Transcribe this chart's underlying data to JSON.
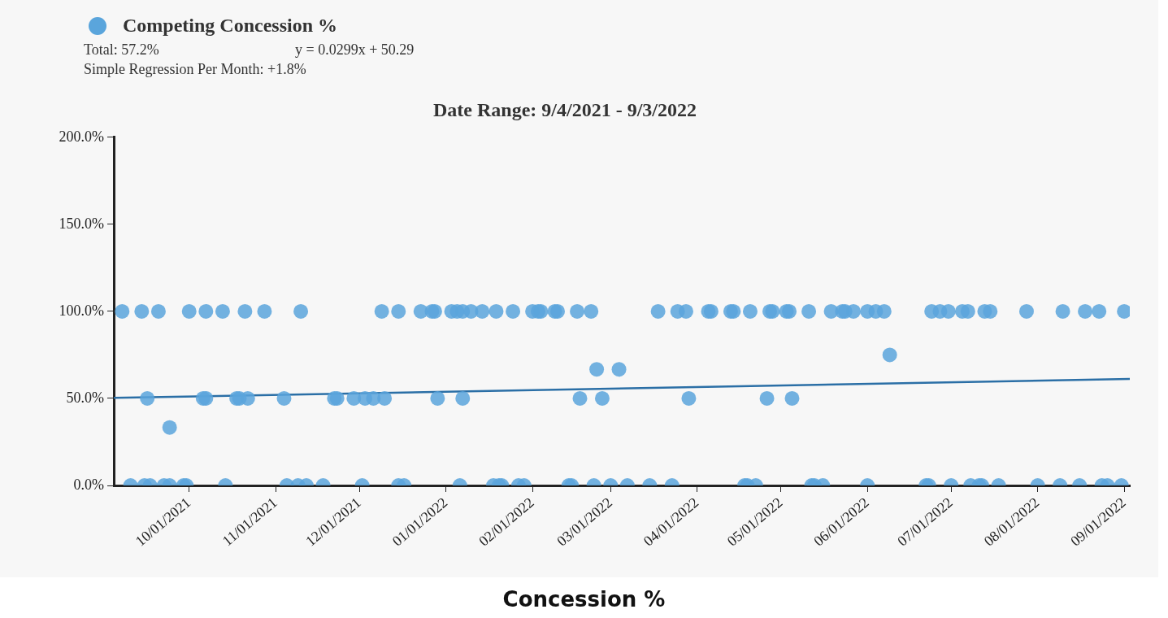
{
  "chart_data": {
    "type": "scatter",
    "title": "Date Range: 9/4/2021 - 9/3/2022",
    "subtitle": "Concession %",
    "annotations": [
      "Total: 57.2%",
      "y = 0.0299x + 50.29",
      "Simple Regression Per Month: +1.8%"
    ],
    "legend": "top left",
    "marker": "circle",
    "xlim": [
      "2021-09-04",
      "2022-09-03"
    ],
    "xticks": [
      {
        "value": "2021-10-01",
        "label": "10/01/2021"
      },
      {
        "value": "2021-11-01",
        "label": "11/01/2021"
      },
      {
        "value": "2021-12-01",
        "label": "12/01/2021"
      },
      {
        "value": "2022-01-01",
        "label": "01/01/2022"
      },
      {
        "value": "2022-02-01",
        "label": "02/01/2022"
      },
      {
        "value": "2022-03-01",
        "label": "03/01/2022"
      },
      {
        "value": "2022-04-01",
        "label": "04/01/2022"
      },
      {
        "value": "2022-05-01",
        "label": "05/01/2022"
      },
      {
        "value": "2022-06-01",
        "label": "06/01/2022"
      },
      {
        "value": "2022-07-01",
        "label": "07/01/2022"
      },
      {
        "value": "2022-08-01",
        "label": "08/01/2022"
      },
      {
        "value": "2022-09-01",
        "label": "09/01/2022"
      }
    ],
    "ylim": [
      0,
      200
    ],
    "yticks": [
      {
        "value": 0,
        "label": "0.0%"
      },
      {
        "value": 50,
        "label": "50.0%"
      },
      {
        "value": 100,
        "label": "100.0%"
      },
      {
        "value": 150,
        "label": "150.0%"
      },
      {
        "value": 200,
        "label": "200.0%"
      }
    ],
    "series": [
      {
        "name": "Competing Concession %",
        "color": "#5aa5dc",
        "x": [
          "2021-09-07",
          "2021-09-14",
          "2021-09-20",
          "2021-10-01",
          "2021-10-07",
          "2021-10-13",
          "2021-10-21",
          "2021-10-28",
          "2021-11-10",
          "2021-12-09",
          "2021-12-15",
          "2021-12-23",
          "2021-12-27",
          "2021-12-28",
          "2022-01-03",
          "2022-01-05",
          "2022-01-07",
          "2022-01-10",
          "2022-01-14",
          "2022-01-19",
          "2022-01-25",
          "2022-02-01",
          "2022-02-03",
          "2022-02-04",
          "2022-02-09",
          "2022-02-10",
          "2022-02-17",
          "2022-02-22",
          "2022-03-18",
          "2022-03-25",
          "2022-03-28",
          "2022-04-05",
          "2022-04-06",
          "2022-04-13",
          "2022-04-14",
          "2022-04-20",
          "2022-04-27",
          "2022-04-28",
          "2022-05-03",
          "2022-05-04",
          "2022-05-11",
          "2022-05-19",
          "2022-05-23",
          "2022-05-24",
          "2022-05-27",
          "2022-06-01",
          "2022-06-04",
          "2022-06-07",
          "2022-06-24",
          "2022-06-27",
          "2022-06-30",
          "2022-07-05",
          "2022-07-07",
          "2022-07-13",
          "2022-07-15",
          "2022-07-28",
          "2022-08-10",
          "2022-08-18",
          "2022-08-23",
          "2022-09-01",
          "2021-09-16",
          "2021-10-06",
          "2021-10-07",
          "2021-10-18",
          "2021-10-19",
          "2021-10-22",
          "2021-11-04",
          "2021-11-22",
          "2021-11-23",
          "2021-11-29",
          "2021-12-03",
          "2021-12-06",
          "2021-12-10",
          "2021-12-29",
          "2022-01-07",
          "2022-02-18",
          "2022-02-26",
          "2022-03-29",
          "2022-04-26",
          "2022-05-05",
          "2021-09-24",
          "2022-02-24",
          "2022-03-04",
          "2022-06-09",
          "2021-09-10",
          "2021-09-15",
          "2021-09-17",
          "2021-09-22",
          "2021-09-24",
          "2021-09-29",
          "2021-09-30",
          "2021-10-14",
          "2021-11-05",
          "2021-11-09",
          "2021-11-12",
          "2021-11-18",
          "2021-12-02",
          "2021-12-15",
          "2021-12-17",
          "2022-01-06",
          "2022-01-18",
          "2022-01-20",
          "2022-01-21",
          "2022-01-27",
          "2022-01-29",
          "2022-02-14",
          "2022-02-15",
          "2022-02-23",
          "2022-03-01",
          "2022-03-07",
          "2022-03-15",
          "2022-03-23",
          "2022-04-18",
          "2022-04-19",
          "2022-04-22",
          "2022-05-12",
          "2022-05-13",
          "2022-05-16",
          "2022-06-01",
          "2022-06-22",
          "2022-06-23",
          "2022-07-01",
          "2022-07-08",
          "2022-07-11",
          "2022-07-12",
          "2022-07-18",
          "2022-08-01",
          "2022-08-09",
          "2022-08-16",
          "2022-08-24",
          "2022-08-26",
          "2022-08-31"
        ],
        "values": [
          100,
          100,
          100,
          100,
          100,
          100,
          100,
          100,
          100,
          100,
          100,
          100,
          100,
          100,
          100,
          100,
          100,
          100,
          100,
          100,
          100,
          100,
          100,
          100,
          100,
          100,
          100,
          100,
          100,
          100,
          100,
          100,
          100,
          100,
          100,
          100,
          100,
          100,
          100,
          100,
          100,
          100,
          100,
          100,
          100,
          100,
          100,
          100,
          100,
          100,
          100,
          100,
          100,
          100,
          100,
          100,
          100,
          100,
          100,
          100,
          50,
          50,
          50,
          50,
          50,
          50,
          50,
          50,
          50,
          50,
          50,
          50,
          50,
          50,
          50,
          50,
          50,
          50,
          50,
          50,
          33.3,
          66.7,
          66.7,
          75,
          0,
          0,
          0,
          0,
          0,
          0,
          0,
          0,
          0,
          0,
          0,
          0,
          0,
          0,
          0,
          0,
          0,
          0,
          0,
          0,
          0,
          0,
          0,
          0,
          0,
          0,
          0,
          0,
          0,
          0,
          0,
          0,
          0,
          0,
          0,
          0,
          0,
          0,
          0,
          0,
          0,
          0,
          0,
          0,
          0,
          0,
          0,
          0
        ]
      },
      {
        "type": "line",
        "color": "#2b6fa6",
        "marker": "none",
        "x": [
          "2021-09-04",
          "2022-09-03"
        ],
        "values": [
          50.3,
          61.2
        ]
      }
    ]
  }
}
